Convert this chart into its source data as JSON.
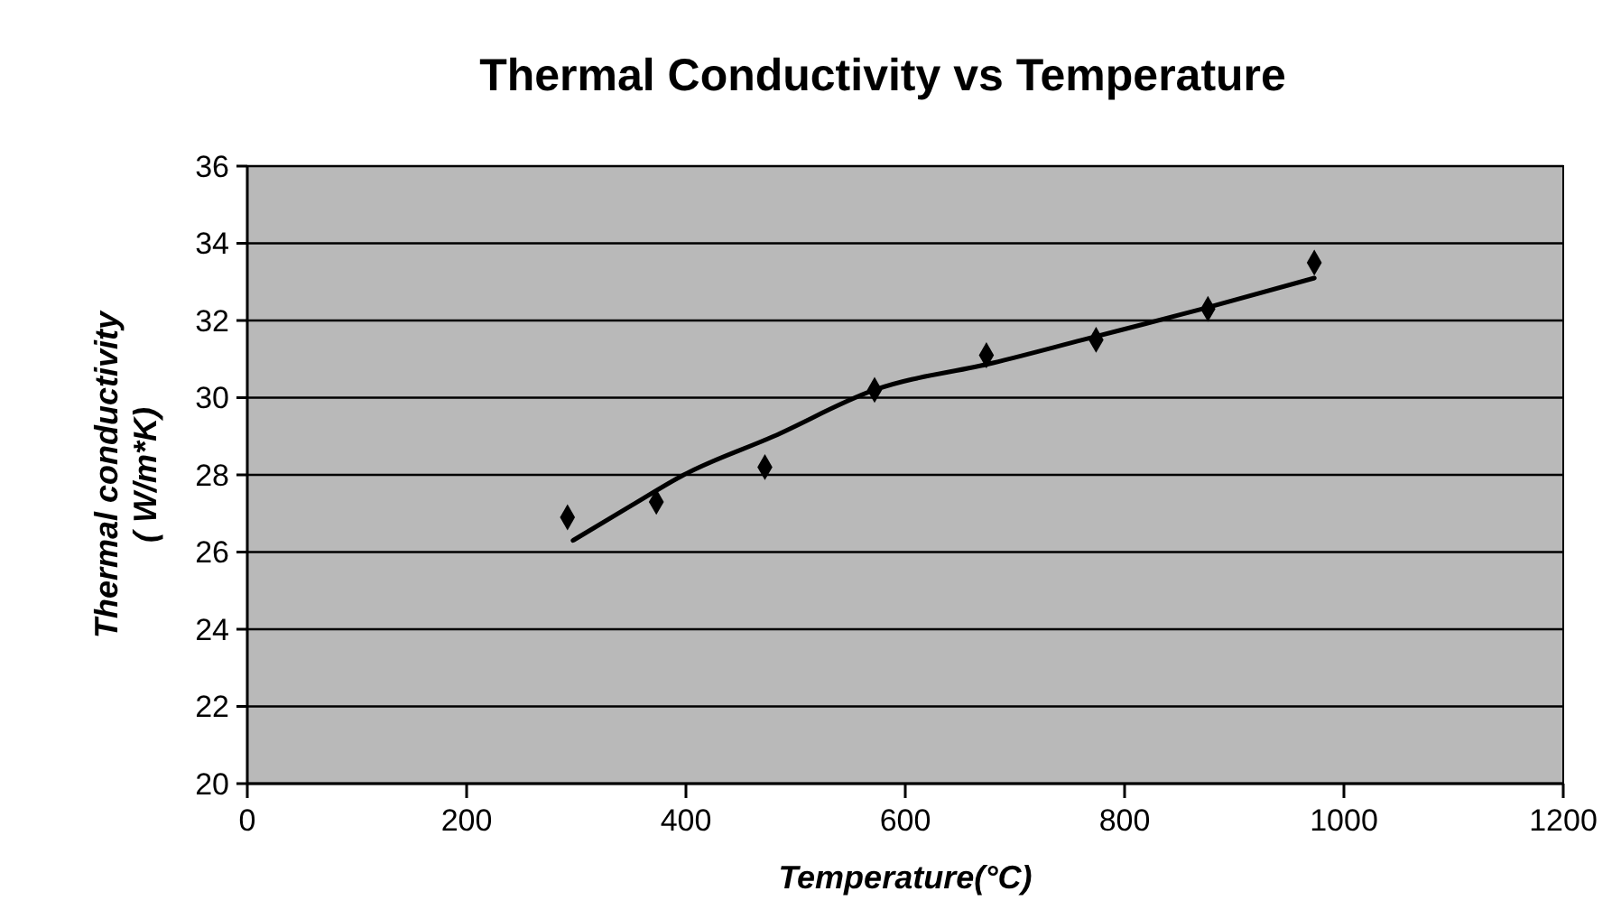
{
  "chart_data": {
    "type": "scatter",
    "title": "Thermal Conductivity vs Temperature",
    "xlabel": "Temperature(°C)",
    "ylabel": "Thermal conductivity\n( W/m*K)",
    "xlim": [
      0,
      1200
    ],
    "xticks": [
      0,
      200,
      400,
      600,
      800,
      1000,
      1200
    ],
    "ylim": [
      20,
      36
    ],
    "yticks": [
      20,
      22,
      24,
      26,
      28,
      30,
      32,
      34,
      36
    ],
    "grid": "y",
    "marker": "diamond",
    "series": [
      {
        "color": "#000000",
        "x": [
          292,
          373,
          472,
          572,
          674,
          774,
          876,
          973
        ],
        "values": [
          26.9,
          27.3,
          28.2,
          30.2,
          31.1,
          31.5,
          32.3,
          33.5
        ]
      },
      {
        "type": "line",
        "color": "#000000",
        "line_style": "solid",
        "marker": "none",
        "x": [
          297,
          350,
          398,
          480,
          572,
          680,
          762,
          871,
          973
        ],
        "values": [
          26.3,
          27.2,
          28.0,
          29.0,
          30.2,
          30.9,
          31.5,
          32.3,
          33.1
        ]
      }
    ]
  }
}
